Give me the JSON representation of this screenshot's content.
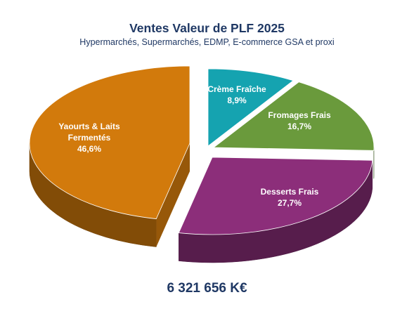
{
  "chart_data": {
    "type": "pie",
    "title": "Ventes Valeur de PLF 2025",
    "subtitle": "Hypermarchés, Supermarchés, EDMP, E-commerce GSA et proxi",
    "total": "6 321 656 K€",
    "slices": [
      {
        "label_lines": [
          "Crème Fraîche"
        ],
        "value_label": "8,9%",
        "value": 8.9,
        "color": "#15a3b0"
      },
      {
        "label_lines": [
          "Fromages Frais"
        ],
        "value_label": "16,7%",
        "value": 16.7,
        "color": "#6a9a3c"
      },
      {
        "label_lines": [
          "Desserts Frais"
        ],
        "value_label": "27,7%",
        "value": 27.7,
        "color": "#8c2e7a"
      },
      {
        "label_lines": [
          "Yaourts & Laits",
          "Fermentés"
        ],
        "value_label": "46,6%",
        "value": 46.6,
        "color": "#d27a0c"
      }
    ],
    "legend": "none"
  }
}
